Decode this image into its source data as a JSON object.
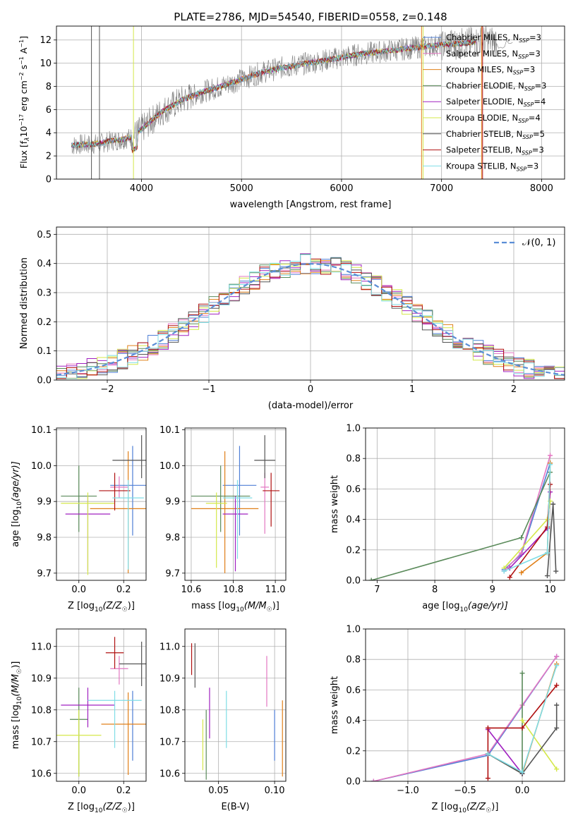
{
  "figure": {
    "title": "PLATE=2786, MJD=54540, FIBERID=0558, z=0.148"
  },
  "colors": {
    "Chabrier MILES": "#4f7fd6",
    "Salpeter MILES": "#e377c2",
    "Kroupa MILES": "#e0801a",
    "Chabrier ELODIE": "#5a8a5a",
    "Salpeter ELODIE": "#a020c0",
    "Kroupa ELODIE": "#d4e84a",
    "Chabrier STELIB": "#555555",
    "Salpeter STELIB": "#b01010",
    "Kroupa STELIB": "#7fdde6",
    "data": "#808080",
    "normal": "#5b8ed6"
  },
  "chart_data": [
    {
      "id": "spectrum",
      "type": "line",
      "xlabel": "wavelength [Angstrom, rest frame]",
      "ylabel_main": "Flux [f",
      "ylabel_rest": "10",
      "ylabel_units": " erg cm",
      "ylabel_units2": " s",
      "ylabel_units3": " A",
      "xlim": [
        3150,
        8230
      ],
      "ylim": [
        0,
        13.2
      ],
      "xticks": [
        4000,
        5000,
        6000,
        7000,
        8000
      ],
      "yticks": [
        0,
        2,
        4,
        6,
        8,
        10,
        12
      ],
      "series": [
        {
          "name": "Chabrier MILES",
          "nssp": "3"
        },
        {
          "name": "Salpeter MILES",
          "nssp": "3"
        },
        {
          "name": "Kroupa MILES",
          "nssp": "3"
        },
        {
          "name": "Chabrier ELODIE",
          "nssp": "3"
        },
        {
          "name": "Salpeter ELODIE",
          "nssp": "4"
        },
        {
          "name": "Kroupa ELODIE",
          "nssp": "4"
        },
        {
          "name": "Chabrier STELIB",
          "nssp": "5"
        },
        {
          "name": "Salpeter STELIB",
          "nssp": "3"
        },
        {
          "name": "Kroupa STELIB",
          "nssp": "3"
        }
      ],
      "continuum": {
        "x": [
          3300,
          3400,
          3500,
          3600,
          3700,
          3800,
          3900,
          4000,
          4200,
          4400,
          4600,
          4800,
          5000,
          5200,
          5400,
          5600,
          5800,
          6000,
          6200,
          6400,
          6600,
          6800,
          7000,
          7200,
          7400
        ],
        "y": [
          2.9,
          3.0,
          3.0,
          3.1,
          3.3,
          3.4,
          3.6,
          4.3,
          5.8,
          6.8,
          7.5,
          8.0,
          8.6,
          9.2,
          9.6,
          9.9,
          10.2,
          10.5,
          10.8,
          11.0,
          11.2,
          11.4,
          11.6,
          11.7,
          11.9
        ]
      },
      "drop_lines": [
        {
          "x": 3500,
          "color": "Chabrier STELIB"
        },
        {
          "x": 3580,
          "color": "Chabrier STELIB"
        },
        {
          "x": 3920,
          "color": "Kroupa ELODIE"
        },
        {
          "x": 6800,
          "color": "Kroupa MILES"
        },
        {
          "x": 6815,
          "color": "Kroupa ELODIE"
        },
        {
          "x": 7400,
          "color": "Kroupa MILES"
        },
        {
          "x": 7410,
          "color": "Salpeter STELIB"
        }
      ]
    },
    {
      "id": "residuals",
      "type": "histogram",
      "xlabel": "(data-model)/error",
      "ylabel": "Normed distribution",
      "xlim": [
        -2.5,
        2.5
      ],
      "ylim": [
        0,
        0.525
      ],
      "xticks": [
        -2,
        -1,
        0,
        1,
        2
      ],
      "yticks": [
        0.0,
        0.1,
        0.2,
        0.3,
        0.4,
        0.5
      ],
      "bin_width": 0.1,
      "legend": "N(0,1)",
      "legend_main": "𝒩",
      "legend_args": "(0, 1)"
    },
    {
      "id": "age_vs_Z",
      "type": "errorbar",
      "xlabel": "Z [log",
      "xlabel_sub": "10",
      "xlabel_tail": "(Z/Z",
      "xlabel_sun": "☉",
      "xlabel_close": ")]",
      "ylabel": "age  [log",
      "ylabel_sub": "10",
      "ylabel_tail": "(age/yr)]",
      "xlim": [
        -0.1,
        0.3
      ],
      "ylim": [
        9.68,
        10.105
      ],
      "xticks": [
        0.0,
        0.2
      ],
      "yticks": [
        9.7,
        9.8,
        9.9,
        10.0,
        10.1
      ],
      "points": [
        {
          "series": "Chabrier MILES",
          "x": 0.24,
          "xerr": 0.1,
          "y": 9.945,
          "yerr": [
            0.14,
            0.11
          ]
        },
        {
          "series": "Salpeter MILES",
          "x": 0.18,
          "xerr": 0.04,
          "y": 9.94,
          "yerr": [
            0.03,
            0.03
          ]
        },
        {
          "series": "Kroupa MILES",
          "x": 0.22,
          "xerr": 0.17,
          "y": 9.88,
          "yerr": [
            0.18,
            0.16
          ]
        },
        {
          "series": "Chabrier ELODIE",
          "x": 0.0,
          "xerr": 0.08,
          "y": 9.915,
          "yerr": [
            0.1,
            0.085
          ]
        },
        {
          "series": "Salpeter ELODIE",
          "x": 0.04,
          "xerr": 0.1,
          "y": 9.865,
          "yerr": [
            0.16,
            0.05
          ]
        },
        {
          "series": "Kroupa ELODIE",
          "x": 0.04,
          "xerr": 0.12,
          "y": 9.895,
          "yerr": [
            0.2,
            0.03
          ]
        },
        {
          "series": "Chabrier STELIB",
          "x": 0.28,
          "xerr": 0.13,
          "y": 10.015,
          "yerr": [
            0.05,
            0.07
          ]
        },
        {
          "series": "Salpeter STELIB",
          "x": 0.16,
          "xerr": 0.07,
          "y": 9.93,
          "yerr": [
            0.055,
            0.05
          ]
        },
        {
          "series": "Kroupa STELIB",
          "x": 0.22,
          "xerr": 0.07,
          "y": 9.91,
          "yerr": [
            0.2,
            0.05
          ]
        }
      ]
    },
    {
      "id": "age_vs_mass",
      "type": "errorbar",
      "xlabel": "mass [log",
      "xlabel_sub": "10",
      "xlabel_tail": "(M/M",
      "xlabel_sun": "☉",
      "xlabel_close": ")]",
      "xlim": [
        10.57,
        11.05
      ],
      "ylim": [
        9.68,
        10.105
      ],
      "xticks": [
        10.6,
        10.8,
        11.0
      ],
      "yticks": [
        9.7,
        9.8,
        9.9,
        10.0,
        10.1
      ],
      "points": [
        {
          "series": "Chabrier MILES",
          "x": 10.83,
          "xerr": 0.08,
          "y": 9.945,
          "yerr": [
            0.14,
            0.11
          ]
        },
        {
          "series": "Salpeter MILES",
          "x": 10.95,
          "xerr": 0.02,
          "y": 9.94,
          "yerr": [
            0.13,
            0.04
          ]
        },
        {
          "series": "Kroupa MILES",
          "x": 10.76,
          "xerr": 0.16,
          "y": 9.88,
          "yerr": [
            0.18,
            0.16
          ]
        },
        {
          "series": "Chabrier ELODIE",
          "x": 10.74,
          "xerr": 0.14,
          "y": 9.915,
          "yerr": [
            0.1,
            0.085
          ]
        },
        {
          "series": "Salpeter ELODIE",
          "x": 10.81,
          "xerr": 0.06,
          "y": 9.865,
          "yerr": [
            0.16,
            0.05
          ]
        },
        {
          "series": "Kroupa ELODIE",
          "x": 10.72,
          "xerr": 0.05,
          "y": 9.895,
          "yerr": [
            0.18,
            0.03
          ]
        },
        {
          "series": "Chabrier STELIB",
          "x": 10.95,
          "xerr": 0.05,
          "y": 10.015,
          "yerr": [
            0.05,
            0.07
          ]
        },
        {
          "series": "Salpeter STELIB",
          "x": 10.98,
          "xerr": 0.04,
          "y": 9.93,
          "yerr": [
            0.1,
            0.05
          ]
        },
        {
          "series": "Kroupa STELIB",
          "x": 10.82,
          "xerr": 0.07,
          "y": 9.91,
          "yerr": [
            0.17,
            0.05
          ]
        }
      ]
    },
    {
      "id": "massweight_vs_age",
      "type": "line",
      "xlabel": "age  [log",
      "xlabel_sub": "10",
      "xlabel_tail": "(age/yr)]",
      "ylabel": "mass weight",
      "xlim": [
        6.8,
        10.25
      ],
      "ylim": [
        0,
        1.0
      ],
      "xticks": [
        7,
        8,
        9,
        10
      ],
      "yticks": [
        0.0,
        0.2,
        0.4,
        0.6,
        0.8,
        1.0
      ],
      "series": [
        {
          "name": "Chabrier MILES",
          "x": [
            9.2,
            9.5,
            10.0
          ],
          "y": [
            0.07,
            0.17,
            0.77
          ]
        },
        {
          "name": "Salpeter MILES",
          "x": [
            9.2,
            9.5,
            10.0
          ],
          "y": [
            0.06,
            0.18,
            0.82
          ]
        },
        {
          "name": "Kroupa MILES",
          "x": [
            9.5,
            9.95,
            10.0
          ],
          "y": [
            0.05,
            0.18,
            0.77
          ]
        },
        {
          "name": "Chabrier ELODIE",
          "x": [
            6.9,
            9.5,
            10.0
          ],
          "y": [
            0.0,
            0.28,
            0.71
          ]
        },
        {
          "name": "Salpeter ELODIE",
          "x": [
            9.3,
            9.95,
            10.0
          ],
          "y": [
            0.08,
            0.34,
            0.58
          ]
        },
        {
          "name": "Kroupa ELODIE",
          "x": [
            9.2,
            9.95,
            10.0
          ],
          "y": [
            0.08,
            0.4,
            0.52
          ]
        },
        {
          "name": "Chabrier STELIB",
          "x": [
            9.95,
            10.05,
            10.1
          ],
          "y": [
            0.03,
            0.5,
            0.06
          ]
        },
        {
          "name": "Salpeter STELIB",
          "x": [
            9.3,
            9.95,
            10.0
          ],
          "y": [
            0.02,
            0.35,
            0.63
          ]
        },
        {
          "name": "Kroupa STELIB",
          "x": [
            9.2,
            9.95,
            10.0
          ],
          "y": [
            0.06,
            0.18,
            0.76
          ]
        }
      ]
    },
    {
      "id": "mass_vs_Z",
      "type": "errorbar",
      "xlabel": "Z [log",
      "xlabel_sub": "10",
      "xlabel_tail": "(Z/Z",
      "xlabel_sun": "☉",
      "xlabel_close": ")]",
      "ylabel": "mass [log",
      "ylabel_sub": "10",
      "ylabel_tail": "(M/M",
      "ylabel_sun": "☉",
      "ylabel_close": ")]",
      "xlim": [
        -0.1,
        0.3
      ],
      "ylim": [
        10.575,
        11.055
      ],
      "xticks": [
        0.0,
        0.2
      ],
      "yticks": [
        10.6,
        10.7,
        10.8,
        10.9,
        11.0
      ],
      "points": [
        {
          "series": "Chabrier MILES",
          "x": 0.24,
          "xerr": 0.0,
          "y": 10.82,
          "yerr": [
            0.18,
            0.04
          ]
        },
        {
          "series": "Salpeter MILES",
          "x": 0.18,
          "xerr": 0.04,
          "y": 10.93,
          "yerr": [
            0.05,
            0.04
          ]
        },
        {
          "series": "Kroupa MILES",
          "x": 0.22,
          "xerr": 0.12,
          "y": 10.755,
          "yerr": [
            0.16,
            0.1
          ]
        },
        {
          "series": "Chabrier ELODIE",
          "x": 0.0,
          "xerr": 0.04,
          "y": 10.77,
          "yerr": [
            0.18,
            0.1
          ]
        },
        {
          "series": "Salpeter ELODIE",
          "x": 0.04,
          "xerr": 0.12,
          "y": 10.815,
          "yerr": [
            0.07,
            0.055
          ]
        },
        {
          "series": "Kroupa ELODIE",
          "x": 0.0,
          "xerr": 0.1,
          "y": 10.72,
          "yerr": [
            0.13,
            0.08
          ]
        },
        {
          "series": "Chabrier STELIB",
          "x": 0.28,
          "xerr": 0.1,
          "y": 10.945,
          "yerr": [
            0.07,
            0.07
          ]
        },
        {
          "series": "Salpeter STELIB",
          "x": 0.16,
          "xerr": 0.04,
          "y": 10.98,
          "yerr": [
            0.05,
            0.05
          ]
        },
        {
          "series": "Kroupa STELIB",
          "x": 0.16,
          "xerr": 0.12,
          "y": 10.83,
          "yerr": [
            0.15,
            0.03
          ]
        }
      ]
    },
    {
      "id": "mass_vs_ebv",
      "type": "errorbar",
      "xlabel": "E(B-V)",
      "xlim": [
        0.02,
        0.11
      ],
      "ylim": [
        10.575,
        11.055
      ],
      "xticks": [
        0.05,
        0.1
      ],
      "yticks": [
        10.6,
        10.7,
        10.8,
        10.9,
        11.0
      ],
      "points": [
        {
          "series": "Chabrier MILES",
          "x": 0.1,
          "y": 10.72,
          "yerr": [
            0.08,
            0.08
          ]
        },
        {
          "series": "Salpeter MILES",
          "x": 0.093,
          "y": 10.89,
          "yerr": [
            0.08,
            0.08
          ]
        },
        {
          "series": "Kroupa MILES",
          "x": 0.107,
          "y": 10.71,
          "yerr": [
            0.12,
            0.12
          ]
        },
        {
          "series": "Chabrier ELODIE",
          "x": 0.039,
          "y": 10.69,
          "yerr": [
            0.11,
            0.11
          ]
        },
        {
          "series": "Salpeter ELODIE",
          "x": 0.042,
          "y": 10.79,
          "yerr": [
            0.08,
            0.08
          ]
        },
        {
          "series": "Kroupa ELODIE",
          "x": 0.036,
          "y": 10.69,
          "yerr": [
            0.08,
            0.08
          ]
        },
        {
          "series": "Chabrier STELIB",
          "x": 0.029,
          "y": 10.94,
          "yerr": [
            0.07,
            0.07
          ]
        },
        {
          "series": "Salpeter STELIB",
          "x": 0.026,
          "y": 10.96,
          "yerr": [
            0.05,
            0.05
          ]
        },
        {
          "series": "Kroupa STELIB",
          "x": 0.057,
          "y": 10.77,
          "yerr": [
            0.09,
            0.09
          ]
        }
      ]
    },
    {
      "id": "massweight_vs_Z",
      "type": "line",
      "xlabel": "Z [log",
      "xlabel_sub": "10",
      "xlabel_tail": "(Z/Z",
      "xlabel_sun": "☉",
      "xlabel_close": ")]",
      "ylabel": "mass weight",
      "xlim": [
        -1.37,
        0.37
      ],
      "ylim": [
        0,
        1.0
      ],
      "xticks": [
        -1.0,
        -0.5,
        0.0
      ],
      "yticks": [
        0.0,
        0.2,
        0.4,
        0.6,
        0.8,
        1.0
      ],
      "series": [
        {
          "name": "Chabrier MILES",
          "x": [
            -1.3,
            -0.3,
            0.3
          ],
          "y": [
            0.0,
            0.17,
            0.82
          ]
        },
        {
          "name": "Salpeter MILES",
          "x": [
            -1.3,
            -0.3,
            0.0,
            0.3
          ],
          "y": [
            0.0,
            0.18,
            0.5,
            0.82
          ]
        },
        {
          "name": "Kroupa MILES",
          "x": [
            -0.3,
            0.0,
            0.3
          ],
          "y": [
            0.18,
            0.05,
            0.77
          ]
        },
        {
          "name": "Chabrier ELODIE",
          "x": [
            -0.3,
            0.0,
            0.0
          ],
          "y": [
            0.18,
            0.05,
            0.71
          ]
        },
        {
          "name": "Salpeter ELODIE",
          "x": [
            -0.3,
            0.0
          ],
          "y": [
            0.34,
            0.05
          ]
        },
        {
          "name": "Kroupa ELODIE",
          "x": [
            0.0,
            0.3
          ],
          "y": [
            0.4,
            0.08
          ]
        },
        {
          "name": "Chabrier STELIB",
          "x": [
            -0.3,
            0.0,
            0.3,
            0.3
          ],
          "y": [
            0.18,
            0.05,
            0.35,
            0.5
          ]
        },
        {
          "name": "Salpeter STELIB",
          "x": [
            -0.3,
            -0.3,
            0.0,
            0.3
          ],
          "y": [
            0.02,
            0.35,
            0.35,
            0.63
          ]
        },
        {
          "name": "Kroupa STELIB",
          "x": [
            -0.3,
            0.0,
            0.3
          ],
          "y": [
            0.18,
            0.06,
            0.76
          ]
        }
      ]
    }
  ]
}
